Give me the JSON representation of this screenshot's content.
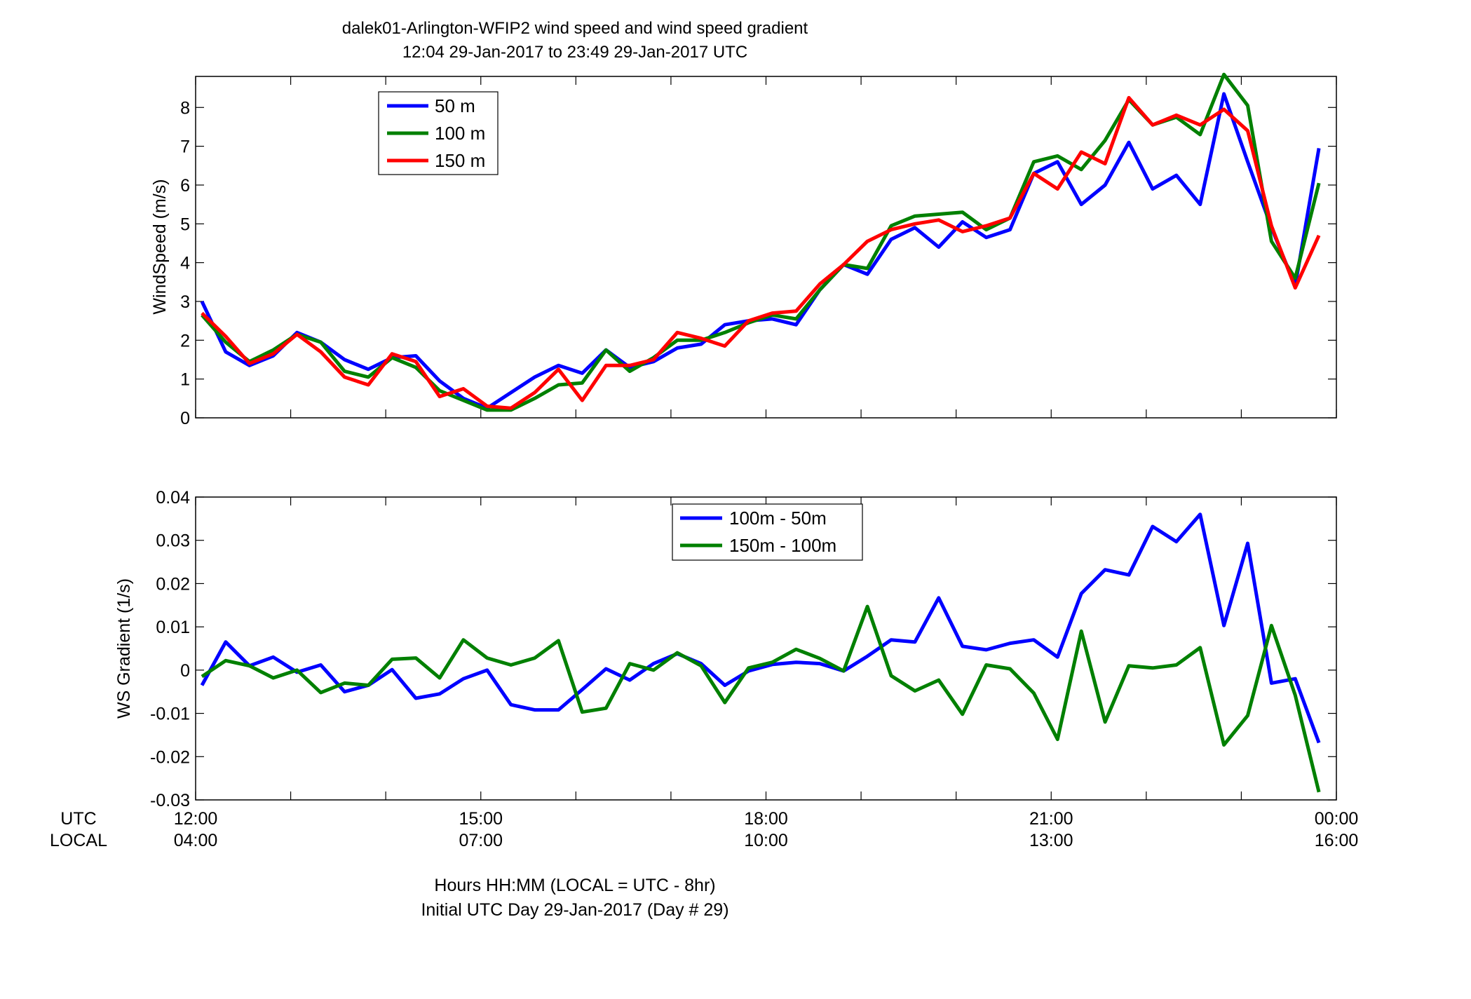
{
  "page": {
    "title_line1": "dalek01-Arlington-WFIP2  wind speed and wind speed gradient",
    "title_line2": "12:04 29-Jan-2017 to 23:49 29-Jan-2017  UTC",
    "xlabel_line1": "Hours HH:MM  (LOCAL = UTC - 8hr)",
    "xlabel_line2": "Initial UTC Day 29-Jan-2017 (Day # 29)",
    "utc_label": "UTC",
    "local_label": "LOCAL"
  },
  "chart_data": [
    {
      "type": "line",
      "ylabel": "WindSpeed (m/s)",
      "xlim": [
        12.0,
        24.0
      ],
      "ylim": [
        0,
        8.8
      ],
      "yticks": [
        0,
        1,
        2,
        3,
        4,
        5,
        6,
        7,
        8
      ],
      "ytick_labels": [
        "0",
        "1",
        "2",
        "3",
        "4",
        "5",
        "6",
        "7",
        "8"
      ],
      "legend_position": "top-left",
      "x": [
        12.0667,
        12.3167,
        12.5667,
        12.8167,
        13.0667,
        13.3167,
        13.5667,
        13.8167,
        14.0667,
        14.3167,
        14.5667,
        14.8167,
        15.0667,
        15.3167,
        15.5667,
        15.8167,
        16.0667,
        16.3167,
        16.5667,
        16.8167,
        17.0667,
        17.3167,
        17.5667,
        17.8167,
        18.0667,
        18.3167,
        18.5667,
        18.8167,
        19.0667,
        19.3167,
        19.5667,
        19.8167,
        20.0667,
        20.3167,
        20.5667,
        20.8167,
        21.0667,
        21.3167,
        21.5667,
        21.8167,
        22.0667,
        22.3167,
        22.5667,
        22.8167,
        23.0667,
        23.3167,
        23.5667,
        23.8167
      ],
      "series": [
        {
          "name": "50 m",
          "color": "#0000FF",
          "values": [
            3.0,
            1.7,
            1.35,
            1.6,
            2.2,
            1.95,
            1.5,
            1.25,
            1.55,
            1.6,
            0.95,
            0.5,
            0.25,
            0.65,
            1.05,
            1.35,
            1.15,
            1.75,
            1.3,
            1.45,
            1.8,
            1.9,
            2.4,
            2.5,
            2.55,
            2.4,
            3.3,
            3.95,
            3.7,
            4.6,
            4.9,
            4.4,
            5.05,
            4.65,
            4.85,
            6.3,
            6.6,
            5.5,
            6.0,
            7.1,
            5.9,
            6.25,
            5.5,
            8.35,
            6.6,
            4.9,
            3.4,
            6.95
          ]
        },
        {
          "name": "100 m",
          "color": "#008000",
          "values": [
            2.65,
            1.95,
            1.45,
            1.75,
            2.15,
            1.95,
            1.2,
            1.05,
            1.55,
            1.3,
            0.7,
            0.45,
            0.2,
            0.2,
            0.5,
            0.85,
            0.9,
            1.75,
            1.2,
            1.55,
            2.0,
            2.0,
            2.2,
            2.45,
            2.65,
            2.55,
            3.3,
            3.95,
            3.85,
            4.95,
            5.2,
            5.25,
            5.3,
            4.85,
            5.15,
            6.6,
            6.75,
            6.4,
            7.15,
            8.2,
            7.55,
            7.75,
            7.3,
            8.85,
            8.05,
            4.55,
            3.6,
            6.05
          ]
        },
        {
          "name": "150 m",
          "color": "#FF0000",
          "values": [
            2.7,
            2.1,
            1.4,
            1.65,
            2.15,
            1.7,
            1.05,
            0.85,
            1.65,
            1.45,
            0.55,
            0.75,
            0.3,
            0.25,
            0.65,
            1.25,
            0.45,
            1.35,
            1.35,
            1.5,
            2.2,
            2.05,
            1.85,
            2.5,
            2.7,
            2.75,
            3.45,
            3.95,
            4.55,
            4.85,
            5.0,
            5.1,
            4.8,
            4.95,
            5.15,
            6.3,
            5.9,
            6.85,
            6.55,
            8.25,
            7.55,
            7.8,
            7.55,
            7.95,
            7.4,
            4.95,
            3.35,
            4.7
          ]
        }
      ]
    },
    {
      "type": "line",
      "ylabel": "WS Gradient (1/s)",
      "xlim": [
        12.0,
        24.0
      ],
      "ylim": [
        -0.03,
        0.04
      ],
      "yticks": [
        -0.03,
        -0.02,
        -0.01,
        0,
        0.01,
        0.02,
        0.03,
        0.04
      ],
      "ytick_labels": [
        "-0.03",
        "-0.02",
        "-0.01",
        "0",
        "0.01",
        "0.02",
        "0.03",
        "0.04"
      ],
      "xtick_labels_utc": [
        "12:00",
        "15:00",
        "18:00",
        "21:00",
        "00:00"
      ],
      "xtick_labels_local": [
        "04:00",
        "07:00",
        "10:00",
        "13:00",
        "16:00"
      ],
      "legend_position": "top-center",
      "x": [
        12.0667,
        12.3167,
        12.5667,
        12.8167,
        13.0667,
        13.3167,
        13.5667,
        13.8167,
        14.0667,
        14.3167,
        14.5667,
        14.8167,
        15.0667,
        15.3167,
        15.5667,
        15.8167,
        16.0667,
        16.3167,
        16.5667,
        16.8167,
        17.0667,
        17.3167,
        17.5667,
        17.8167,
        18.0667,
        18.3167,
        18.5667,
        18.8167,
        19.0667,
        19.3167,
        19.5667,
        19.8167,
        20.0667,
        20.3167,
        20.5667,
        20.8167,
        21.0667,
        21.3167,
        21.5667,
        21.8167,
        22.0667,
        22.3167,
        22.5667,
        22.8167,
        23.0667,
        23.3167,
        23.5667,
        23.8167
      ],
      "series": [
        {
          "name": "100m - 50m",
          "color": "#0000FF",
          "values": [
            -0.0035,
            0.0065,
            0.001,
            0.003,
            -0.0005,
            0.0012,
            -0.005,
            -0.0035,
            0.0001,
            -0.0065,
            -0.0055,
            -0.002,
            0.0,
            -0.008,
            -0.0092,
            -0.0092,
            -0.0045,
            0.0003,
            -0.0023,
            0.0015,
            0.0038,
            0.0015,
            -0.0035,
            -0.0002,
            0.0013,
            0.0018,
            0.0015,
            -0.0002,
            0.0032,
            0.007,
            0.0065,
            0.0167,
            0.0055,
            0.0047,
            0.0062,
            0.007,
            0.003,
            0.0177,
            0.0232,
            0.022,
            0.0332,
            0.0297,
            0.036,
            0.0103,
            0.0293,
            -0.003,
            -0.002,
            -0.0168
          ]
        },
        {
          "name": "150m - 100m",
          "color": "#008000",
          "values": [
            -0.0015,
            0.0022,
            0.001,
            -0.0018,
            0.0,
            -0.0052,
            -0.003,
            -0.0035,
            0.0025,
            0.0028,
            -0.0018,
            0.007,
            0.0028,
            0.0012,
            0.0028,
            0.0068,
            -0.0097,
            -0.0088,
            0.0015,
            0.0,
            0.004,
            0.001,
            -0.0075,
            0.0005,
            0.0018,
            0.0048,
            0.0027,
            -0.0002,
            0.0147,
            -0.0013,
            -0.0048,
            -0.0023,
            -0.0102,
            0.0012,
            0.0003,
            -0.0053,
            -0.016,
            0.009,
            -0.012,
            0.001,
            0.0005,
            0.0012,
            0.0052,
            -0.0173,
            -0.0105,
            0.0103,
            -0.0058,
            -0.0282
          ]
        }
      ]
    }
  ]
}
